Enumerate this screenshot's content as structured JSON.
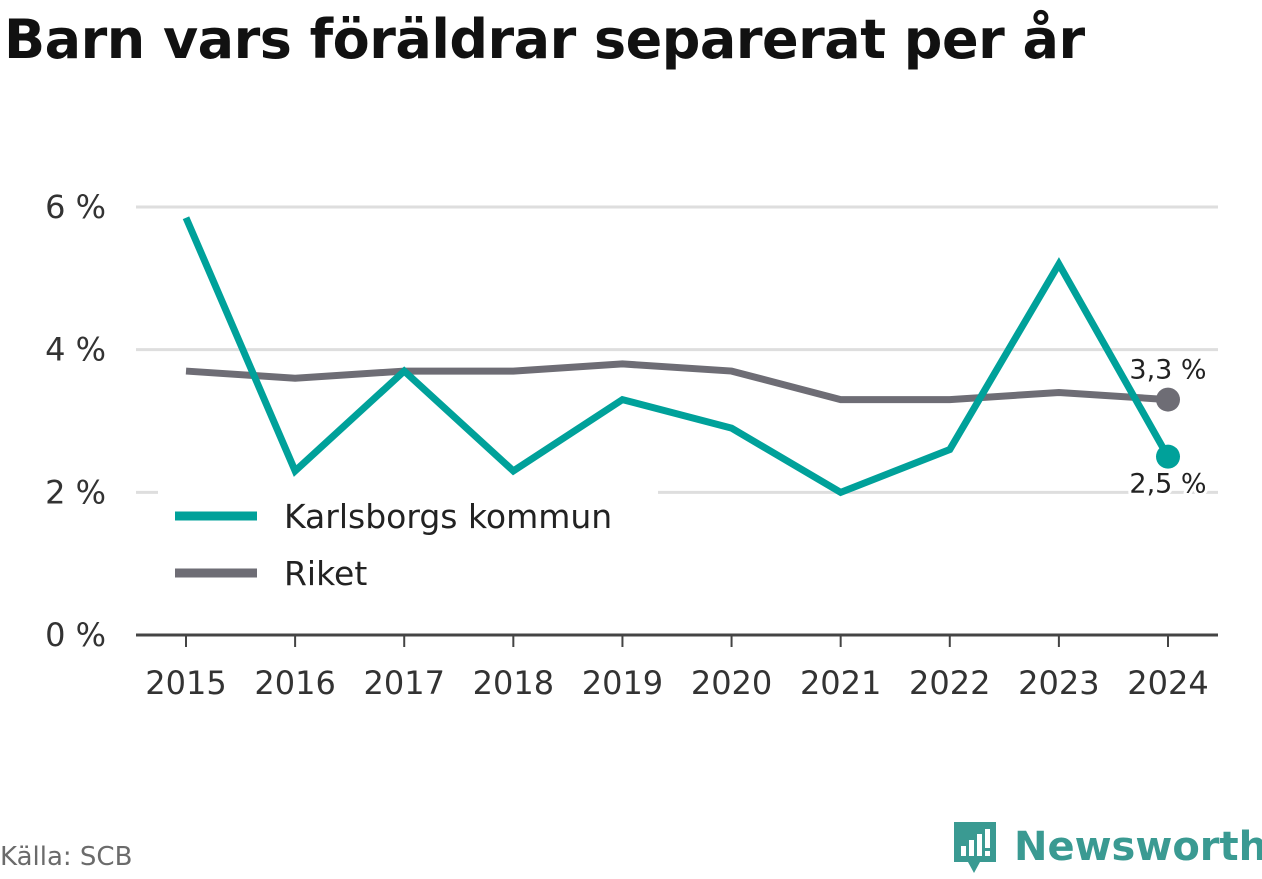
{
  "title": "Barn vars föräldrar separerat per år",
  "source": "Källa: SCB",
  "brand": {
    "name": "Newsworthy",
    "icon": "newsworthy-logo-icon"
  },
  "colors": {
    "kommun": "#00a19a",
    "riket": "#6e6d75",
    "grid": "#dedede",
    "axis": "#444444"
  },
  "chart_data": {
    "type": "line",
    "x": [
      "2015",
      "2016",
      "2017",
      "2018",
      "2019",
      "2020",
      "2021",
      "2022",
      "2023",
      "2024"
    ],
    "ylim": [
      0,
      6
    ],
    "yticks": [
      0,
      2,
      4,
      6
    ],
    "ytick_labels": [
      "0 %",
      "2 %",
      "4 %",
      "6 %"
    ],
    "grid": true,
    "legend": "bottom-left",
    "series": [
      {
        "name": "Karlsborgs kommun",
        "color": "#00a19a",
        "values": [
          5.85,
          2.3,
          3.7,
          2.3,
          3.3,
          2.9,
          2.0,
          2.6,
          5.2,
          2.5
        ],
        "end_label": "2,5 %"
      },
      {
        "name": "Riket",
        "color": "#6e6d75",
        "values": [
          3.7,
          3.6,
          3.7,
          3.7,
          3.8,
          3.7,
          3.3,
          3.3,
          3.4,
          3.3
        ],
        "end_label": "3,3 %"
      }
    ]
  }
}
